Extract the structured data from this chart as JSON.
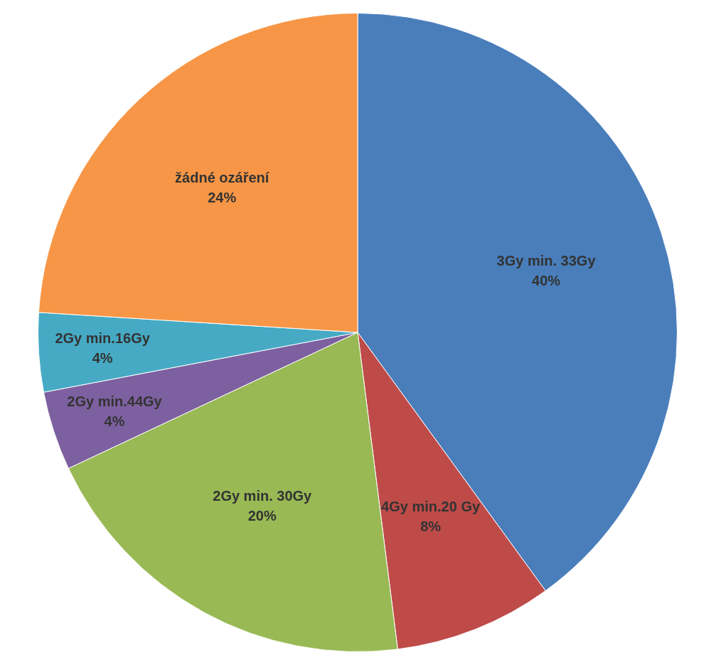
{
  "chart_data": {
    "type": "pie",
    "categories": [
      "3Gy min. 33Gy",
      "4Gy min.20 Gy",
      "2Gy min. 30Gy",
      "2Gy min.44Gy",
      "2Gy min.16Gy",
      "žádné ozáření"
    ],
    "values": [
      40,
      8,
      20,
      4,
      4,
      24
    ],
    "value_labels": [
      "40%",
      "8%",
      "20%",
      "4%",
      "4%",
      "24%"
    ],
    "colors": [
      "#4a7ebb",
      "#be4b48",
      "#98b954",
      "#7d60a0",
      "#46aac5",
      "#f79646"
    ],
    "legend": false
  }
}
